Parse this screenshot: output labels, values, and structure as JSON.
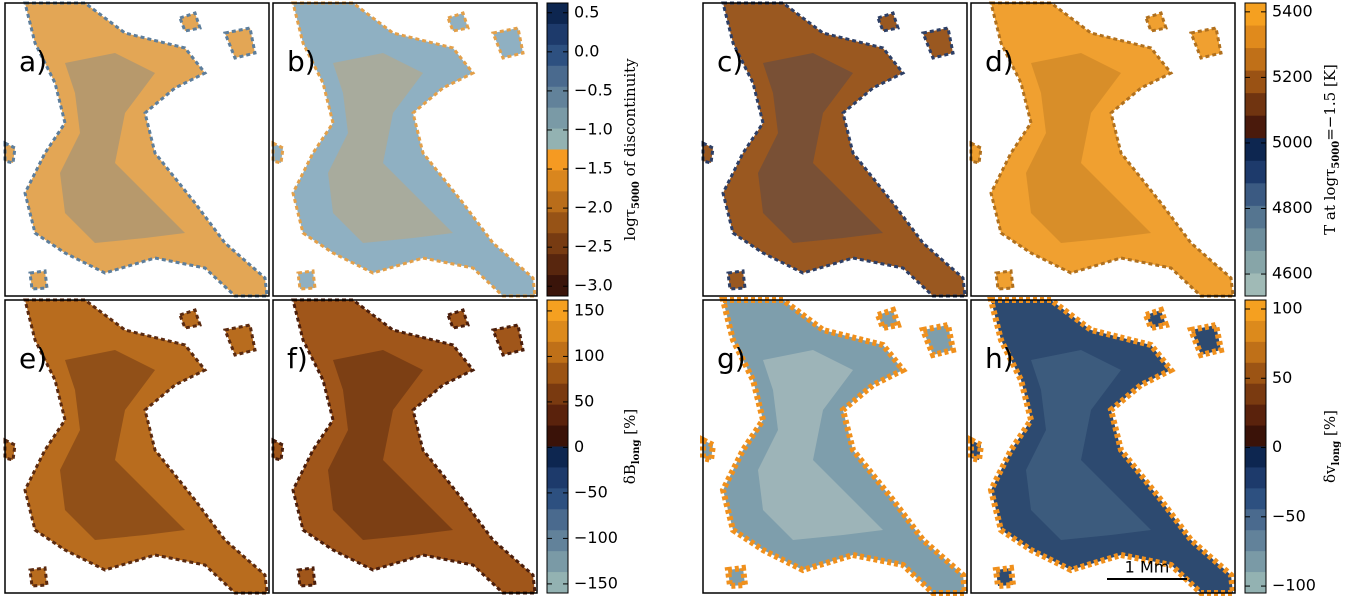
{
  "panels": [
    {
      "label": "a)"
    },
    {
      "label": "b)"
    },
    {
      "label": "c)"
    },
    {
      "label": "d)"
    },
    {
      "label": "e)"
    },
    {
      "label": "f)"
    },
    {
      "label": "g)"
    },
    {
      "label": "h)"
    }
  ],
  "scale_bar": {
    "label": "1 Mm"
  },
  "colorbars": [
    {
      "label": {
        "main": "logτ",
        "sub": "5000",
        "rest": " of discontinuity"
      },
      "lim": [
        -3.125,
        0.625
      ],
      "ticks": [
        {
          "value": 0.5,
          "label": "0.5"
        },
        {
          "value": 0,
          "label": "0.0"
        },
        {
          "value": -0.5,
          "label": "−0.5"
        },
        {
          "value": -1,
          "label": "−1.0"
        },
        {
          "value": -1.5,
          "label": "−1.5"
        },
        {
          "value": -2,
          "label": "−2.0"
        },
        {
          "value": -2.5,
          "label": "−2.5"
        },
        {
          "value": -3,
          "label": "−3.0"
        }
      ],
      "colors": [
        "#0d2650",
        "#1d3a6b",
        "#2d5080",
        "#4a6a8e",
        "#62829a",
        "#7a9aa6",
        "#93b2b2",
        "#f59a22",
        "#d9861e",
        "#b96d1a",
        "#975316",
        "#773b12",
        "#58260e",
        "#3a140a"
      ]
    },
    {
      "label": {
        "main": "T at logτ",
        "sub": "5000",
        "rest": "=−1.5 [K]"
      },
      "lim": [
        4533,
        5427
      ],
      "ticks": [
        5400,
        5200,
        5000,
        4800,
        4600
      ],
      "colors": [
        "#f5a020",
        "#e08a1c",
        "#c07018",
        "#9a5214",
        "#703410",
        "#4a1a0c",
        "#0d2650",
        "#1d3a6b",
        "#3b5a82",
        "#557590",
        "#6d8d9c",
        "#87a5a8",
        "#a0bab6"
      ]
    },
    {
      "label": {
        "main": "δB",
        "sub": "long",
        "rest": " [%]"
      },
      "lim": [
        -160,
        162
      ],
      "ticks": [
        150,
        100,
        50,
        0,
        {
          "value": -50,
          "label": "−50"
        },
        {
          "value": -100,
          "label": "−100"
        },
        {
          "value": -150,
          "label": "−150"
        }
      ],
      "colors": [
        "#f5a020",
        "#dc8a1c",
        "#bf7018",
        "#9c5414",
        "#7a3a10",
        "#5a220c",
        "#3a1208",
        "#0d2650",
        "#1d3a6b",
        "#2d5080",
        "#4a6a8e",
        "#62829a",
        "#7a9aa6",
        "#93b2b2"
      ]
    },
    {
      "label": {
        "main": "δv",
        "sub": "long",
        "rest": " [%]"
      },
      "lim": [
        -105,
        106.5
      ],
      "ticks": [
        100,
        50,
        0,
        {
          "value": -50,
          "label": "−50"
        },
        {
          "value": -100,
          "label": "−100"
        }
      ],
      "colors": [
        "#f5a020",
        "#dc8a1c",
        "#bf7018",
        "#9c5414",
        "#7a3a10",
        "#5a220c",
        "#3a1208",
        "#0d2650",
        "#1d3a6b",
        "#2d5080",
        "#4a6a8e",
        "#62829a",
        "#7a9aa6",
        "#93b2b2"
      ]
    }
  ]
}
